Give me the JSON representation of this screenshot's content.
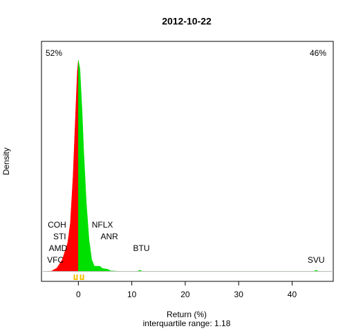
{
  "chart_data": {
    "type": "density",
    "title": "2012-10-22",
    "x_label": "Return (%)",
    "subtitle": "interquartile range: 1.18",
    "y_label": "Density",
    "neg_share": "52%",
    "pos_share": "46%",
    "neg_color": "#ff0000",
    "pos_color": "#00e000",
    "x": [
      -6,
      -5,
      -4,
      -3,
      -2,
      -1.5,
      -1,
      -0.5,
      -0.2,
      0,
      0.3,
      0.7,
      1,
      1.5,
      2,
      2.5,
      3,
      4,
      4.5,
      5.5,
      6,
      8,
      11,
      11.5,
      12,
      44,
      44.5,
      45,
      47
    ],
    "values": [
      0,
      0.001,
      0.008,
      0.027,
      0.065,
      0.11,
      0.215,
      0.365,
      0.455,
      0.48,
      0.46,
      0.365,
      0.275,
      0.155,
      0.072,
      0.027,
      0.012,
      0.012,
      0.007,
      0.005,
      0.0015,
      0,
      0,
      0.003,
      0,
      0,
      0.003,
      0,
      0
    ],
    "quartiles": [
      -0.5,
      0.68
    ],
    "labels": [
      {
        "text": "COH",
        "x": -4
      },
      {
        "text": "STI",
        "x": -3.5
      },
      {
        "text": "AMD",
        "x": -3.8
      },
      {
        "text": "VFC",
        "x": -4.3
      },
      {
        "text": "NFLX",
        "x": 4.5
      },
      {
        "text": "ANR",
        "x": 5.8
      },
      {
        "text": "BTU",
        "x": 11.8
      },
      {
        "text": "SVU",
        "x": 44.5
      }
    ],
    "xlim": [
      -6.9,
      47.7
    ],
    "ylim": [
      -0.0225,
      0.5225
    ],
    "xticks": [
      0,
      10,
      20,
      30,
      40
    ]
  }
}
